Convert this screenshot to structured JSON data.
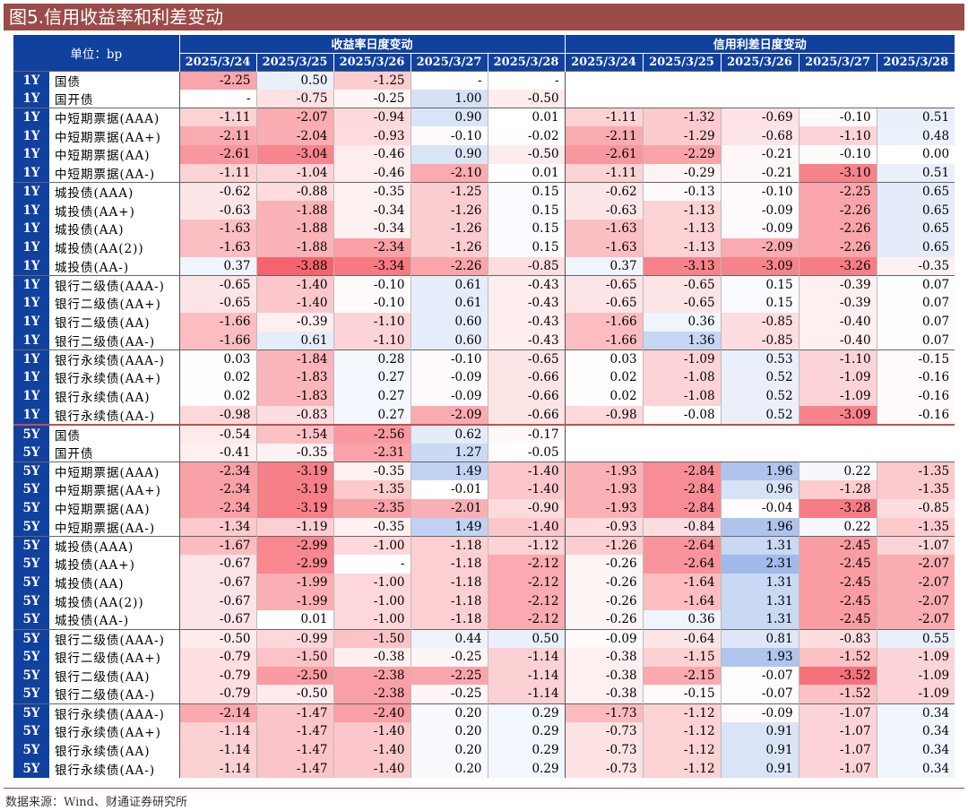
{
  "title": "图5.信用收益率和利差变动",
  "unit_label": "单位：bp",
  "group_yield": "收益率日度变动",
  "group_spread": "信用利差日度变动",
  "dates": [
    "2025/3/24",
    "2025/3/25",
    "2025/3/26",
    "2025/3/27",
    "2025/3/28"
  ],
  "source": "数据来源：Wind、财通证券研究所",
  "rows": [
    {
      "t": "1Y",
      "n": "国债",
      "y": [
        "-2.25",
        "0.50",
        "-1.25",
        "-",
        "-"
      ],
      "s": null,
      "g": true
    },
    {
      "t": "1Y",
      "n": "国开债",
      "y": [
        "-",
        "-0.75",
        "-0.25",
        "1.00",
        "-0.50"
      ],
      "s": null
    },
    {
      "t": "1Y",
      "n": "中短期票据(AAA)",
      "y": [
        "-1.11",
        "-2.07",
        "-0.94",
        "0.90",
        "0.01"
      ],
      "s": [
        "-1.11",
        "-1.32",
        "-0.69",
        "-0.10",
        "0.51"
      ],
      "g": true
    },
    {
      "t": "1Y",
      "n": "中短期票据(AA+)",
      "y": [
        "-2.11",
        "-2.04",
        "-0.93",
        "-0.10",
        "-0.02"
      ],
      "s": [
        "-2.11",
        "-1.29",
        "-0.68",
        "-1.10",
        "0.48"
      ]
    },
    {
      "t": "1Y",
      "n": "中短期票据(AA)",
      "y": [
        "-2.61",
        "-3.04",
        "-0.46",
        "0.90",
        "-0.50"
      ],
      "s": [
        "-2.61",
        "-2.29",
        "-0.21",
        "-0.10",
        "0.00"
      ]
    },
    {
      "t": "1Y",
      "n": "中短期票据(AA-)",
      "y": [
        "-1.11",
        "-1.04",
        "-0.46",
        "-2.10",
        "0.01"
      ],
      "s": [
        "-1.11",
        "-0.29",
        "-0.21",
        "-3.10",
        "0.51"
      ]
    },
    {
      "t": "1Y",
      "n": "城投债(AAA)",
      "y": [
        "-0.62",
        "-0.88",
        "-0.35",
        "-1.25",
        "0.15"
      ],
      "s": [
        "-0.62",
        "-0.13",
        "-0.10",
        "-2.25",
        "0.65"
      ],
      "g": true
    },
    {
      "t": "1Y",
      "n": "城投债(AA+)",
      "y": [
        "-0.63",
        "-1.88",
        "-0.34",
        "-1.26",
        "0.15"
      ],
      "s": [
        "-0.63",
        "-1.13",
        "-0.09",
        "-2.26",
        "0.65"
      ]
    },
    {
      "t": "1Y",
      "n": "城投债(AA)",
      "y": [
        "-1.63",
        "-1.88",
        "-0.34",
        "-1.26",
        "0.15"
      ],
      "s": [
        "-1.63",
        "-1.13",
        "-0.09",
        "-2.26",
        "0.65"
      ]
    },
    {
      "t": "1Y",
      "n": "城投债(AA(2))",
      "y": [
        "-1.63",
        "-1.88",
        "-2.34",
        "-1.26",
        "0.15"
      ],
      "s": [
        "-1.63",
        "-1.13",
        "-2.09",
        "-2.26",
        "0.65"
      ]
    },
    {
      "t": "1Y",
      "n": "城投债(AA-)",
      "y": [
        "0.37",
        "-3.88",
        "-3.34",
        "-2.26",
        "-0.85"
      ],
      "s": [
        "0.37",
        "-3.13",
        "-3.09",
        "-3.26",
        "-0.35"
      ]
    },
    {
      "t": "1Y",
      "n": "银行二级债(AAA-)",
      "y": [
        "-0.65",
        "-1.40",
        "-0.10",
        "0.61",
        "-0.43"
      ],
      "s": [
        "-0.65",
        "-0.65",
        "0.15",
        "-0.39",
        "0.07"
      ],
      "g": true
    },
    {
      "t": "1Y",
      "n": "银行二级债(AA+)",
      "y": [
        "-0.65",
        "-1.40",
        "-0.10",
        "0.61",
        "-0.43"
      ],
      "s": [
        "-0.65",
        "-0.65",
        "0.15",
        "-0.39",
        "0.07"
      ]
    },
    {
      "t": "1Y",
      "n": "银行二级债(AA)",
      "y": [
        "-1.66",
        "-0.39",
        "-1.10",
        "0.60",
        "-0.43"
      ],
      "s": [
        "-1.66",
        "0.36",
        "-0.85",
        "-0.40",
        "0.07"
      ]
    },
    {
      "t": "1Y",
      "n": "银行二级债(AA-)",
      "y": [
        "-1.66",
        "0.61",
        "-1.10",
        "0.60",
        "-0.43"
      ],
      "s": [
        "-1.66",
        "1.36",
        "-0.85",
        "-0.40",
        "0.07"
      ]
    },
    {
      "t": "1Y",
      "n": "银行永续债(AAA-)",
      "y": [
        "0.03",
        "-1.84",
        "0.28",
        "-0.10",
        "-0.65"
      ],
      "s": [
        "0.03",
        "-1.09",
        "0.53",
        "-1.10",
        "-0.15"
      ],
      "g": true
    },
    {
      "t": "1Y",
      "n": "银行永续债(AA+)",
      "y": [
        "0.02",
        "-1.83",
        "0.27",
        "-0.09",
        "-0.66"
      ],
      "s": [
        "0.02",
        "-1.08",
        "0.52",
        "-1.09",
        "-0.16"
      ]
    },
    {
      "t": "1Y",
      "n": "银行永续债(AA)",
      "y": [
        "0.02",
        "-1.83",
        "0.27",
        "-0.09",
        "-0.66"
      ],
      "s": [
        "0.02",
        "-1.08",
        "0.52",
        "-1.09",
        "-0.16"
      ]
    },
    {
      "t": "1Y",
      "n": "银行永续债(AA-)",
      "y": [
        "-0.98",
        "-0.83",
        "0.27",
        "-2.09",
        "-0.66"
      ],
      "s": [
        "-0.98",
        "-0.08",
        "0.52",
        "-3.09",
        "-0.16"
      ]
    },
    {
      "t": "5Y",
      "n": "国债",
      "y": [
        "-0.54",
        "-1.54",
        "-2.56",
        "0.62",
        "-0.17"
      ],
      "s": null,
      "g": true,
      "red": true
    },
    {
      "t": "5Y",
      "n": "国开债",
      "y": [
        "-0.41",
        "-0.35",
        "-2.31",
        "1.27",
        "-0.05"
      ],
      "s": null
    },
    {
      "t": "5Y",
      "n": "中短期票据(AAA)",
      "y": [
        "-2.34",
        "-3.19",
        "-0.35",
        "1.49",
        "-1.40"
      ],
      "s": [
        "-1.93",
        "-2.84",
        "1.96",
        "0.22",
        "-1.35"
      ],
      "g": true
    },
    {
      "t": "5Y",
      "n": "中短期票据(AA+)",
      "y": [
        "-2.34",
        "-3.19",
        "-1.35",
        "-0.01",
        "-1.40"
      ],
      "s": [
        "-1.93",
        "-2.84",
        "0.96",
        "-1.28",
        "-1.35"
      ]
    },
    {
      "t": "5Y",
      "n": "中短期票据(AA)",
      "y": [
        "-2.34",
        "-3.19",
        "-2.35",
        "-2.01",
        "-0.90"
      ],
      "s": [
        "-1.93",
        "-2.84",
        "-0.04",
        "-3.28",
        "-0.85"
      ]
    },
    {
      "t": "5Y",
      "n": "中短期票据(AA-)",
      "y": [
        "-1.34",
        "-1.19",
        "-0.35",
        "1.49",
        "-1.40"
      ],
      "s": [
        "-0.93",
        "-0.84",
        "1.96",
        "0.22",
        "-1.35"
      ]
    },
    {
      "t": "5Y",
      "n": "城投债(AAA)",
      "y": [
        "-1.67",
        "-2.99",
        "-1.00",
        "-1.18",
        "-1.12"
      ],
      "s": [
        "-1.26",
        "-2.64",
        "1.31",
        "-2.45",
        "-1.07"
      ],
      "g": true
    },
    {
      "t": "5Y",
      "n": "城投债(AA+)",
      "y": [
        "-0.67",
        "-2.99",
        "-",
        "-1.18",
        "-2.12"
      ],
      "s": [
        "-0.26",
        "-2.64",
        "2.31",
        "-2.45",
        "-2.07"
      ]
    },
    {
      "t": "5Y",
      "n": "城投债(AA)",
      "y": [
        "-0.67",
        "-1.99",
        "-1.00",
        "-1.18",
        "-2.12"
      ],
      "s": [
        "-0.26",
        "-1.64",
        "1.31",
        "-2.45",
        "-2.07"
      ]
    },
    {
      "t": "5Y",
      "n": "城投债(AA(2))",
      "y": [
        "-0.67",
        "-1.99",
        "-1.00",
        "-1.18",
        "-2.12"
      ],
      "s": [
        "-0.26",
        "-1.64",
        "1.31",
        "-2.45",
        "-2.07"
      ]
    },
    {
      "t": "5Y",
      "n": "城投债(AA-)",
      "y": [
        "-0.67",
        "0.01",
        "-1.00",
        "-1.18",
        "-2.12"
      ],
      "s": [
        "-0.26",
        "0.36",
        "1.31",
        "-2.45",
        "-2.07"
      ]
    },
    {
      "t": "5Y",
      "n": "银行二级债(AAA-)",
      "y": [
        "-0.50",
        "-0.99",
        "-1.50",
        "0.44",
        "0.50"
      ],
      "s": [
        "-0.09",
        "-0.64",
        "0.81",
        "-0.83",
        "0.55"
      ],
      "g": true
    },
    {
      "t": "5Y",
      "n": "银行二级债(AA+)",
      "y": [
        "-0.79",
        "-1.50",
        "-0.38",
        "-0.25",
        "-1.14"
      ],
      "s": [
        "-0.38",
        "-1.15",
        "1.93",
        "-1.52",
        "-1.09"
      ]
    },
    {
      "t": "5Y",
      "n": "银行二级债(AA)",
      "y": [
        "-0.79",
        "-2.50",
        "-2.38",
        "-2.25",
        "-1.14"
      ],
      "s": [
        "-0.38",
        "-2.15",
        "-0.07",
        "-3.52",
        "-1.09"
      ]
    },
    {
      "t": "5Y",
      "n": "银行二级债(AA-)",
      "y": [
        "-0.79",
        "-0.50",
        "-2.38",
        "-0.25",
        "-1.14"
      ],
      "s": [
        "-0.38",
        "-0.15",
        "-0.07",
        "-1.52",
        "-1.09"
      ]
    },
    {
      "t": "5Y",
      "n": "银行永续债(AAA-)",
      "y": [
        "-2.14",
        "-1.47",
        "-2.40",
        "0.20",
        "0.29"
      ],
      "s": [
        "-1.73",
        "-1.12",
        "-0.09",
        "-1.07",
        "0.34"
      ],
      "g": true
    },
    {
      "t": "5Y",
      "n": "银行永续债(AA+)",
      "y": [
        "-1.14",
        "-1.47",
        "-1.40",
        "0.20",
        "0.29"
      ],
      "s": [
        "-0.73",
        "-1.12",
        "0.91",
        "-1.07",
        "0.34"
      ]
    },
    {
      "t": "5Y",
      "n": "银行永续债(AA)",
      "y": [
        "-1.14",
        "-1.47",
        "-1.40",
        "0.20",
        "0.29"
      ],
      "s": [
        "-0.73",
        "-1.12",
        "0.91",
        "-1.07",
        "0.34"
      ]
    },
    {
      "t": "5Y",
      "n": "银行永续债(AA-)",
      "y": [
        "-1.14",
        "-1.47",
        "-1.40",
        "0.20",
        "0.29"
      ],
      "s": [
        "-0.73",
        "-1.12",
        "0.91",
        "-1.07",
        "0.34"
      ]
    }
  ]
}
